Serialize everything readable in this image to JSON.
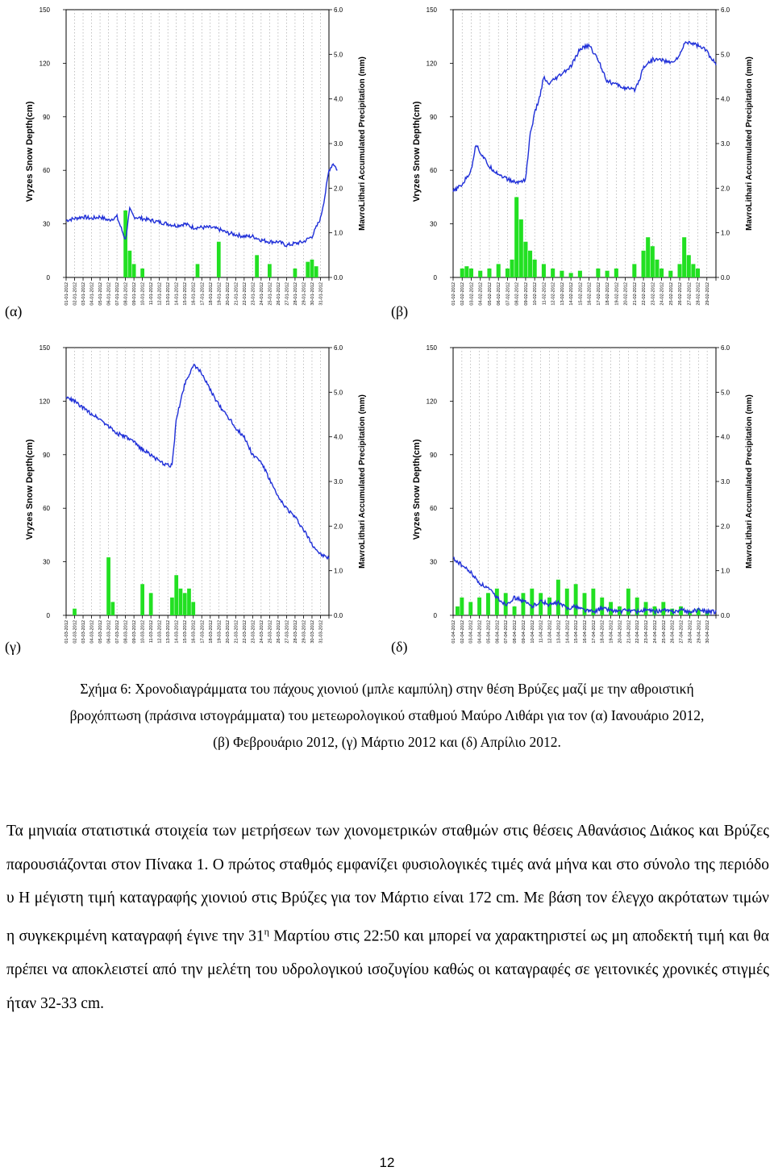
{
  "axis_labels": {
    "left": "Vryzes Snow Depth(cm)",
    "right": "MavroLithari Accumulated Precipitation (mm)",
    "left_ticks": [
      "0",
      "30",
      "60",
      "90",
      "120",
      "150"
    ],
    "right_ticks": [
      "0.0",
      "1.0",
      "2.0",
      "3.0",
      "4.0",
      "5.0",
      "6.0"
    ]
  },
  "colors": {
    "snow": "#1f2fd8",
    "precip": "#22e022",
    "grid": "#9a9a9a"
  },
  "chart_data": [
    {
      "type": "line",
      "panel_label": "(α)",
      "month": "01",
      "days": 31,
      "ylim": [
        0,
        150
      ],
      "y2lim": [
        0.0,
        6.0
      ],
      "snow_depth_keypoints": [
        [
          0,
          32
        ],
        [
          1,
          33
        ],
        [
          2,
          34
        ],
        [
          3,
          33
        ],
        [
          4,
          34
        ],
        [
          5,
          32
        ],
        [
          6,
          34
        ],
        [
          7,
          21
        ],
        [
          7.5,
          38
        ],
        [
          8,
          34
        ],
        [
          9,
          33
        ],
        [
          10,
          32
        ],
        [
          11,
          31
        ],
        [
          12,
          30
        ],
        [
          13,
          29
        ],
        [
          14,
          30
        ],
        [
          15,
          28
        ],
        [
          16,
          28
        ],
        [
          17,
          28
        ],
        [
          18,
          27
        ],
        [
          19,
          25
        ],
        [
          20,
          24
        ],
        [
          21,
          23
        ],
        [
          22,
          23
        ],
        [
          23,
          21
        ],
        [
          24,
          20
        ],
        [
          25,
          20
        ],
        [
          26,
          18
        ],
        [
          27,
          19
        ],
        [
          28,
          20
        ],
        [
          29,
          23
        ],
        [
          30,
          33
        ],
        [
          30.5,
          45
        ],
        [
          31,
          60
        ],
        [
          31.5,
          64
        ],
        [
          32,
          60
        ]
      ],
      "precip_bars": [
        [
          7,
          1.5
        ],
        [
          7.5,
          0.6
        ],
        [
          8,
          0.3
        ],
        [
          9,
          0.2
        ],
        [
          15.5,
          0.3
        ],
        [
          18,
          0.8
        ],
        [
          22.5,
          0.5
        ],
        [
          24,
          0.3
        ],
        [
          27,
          0.2
        ],
        [
          28.5,
          0.35
        ],
        [
          29,
          0.4
        ],
        [
          29.5,
          0.25
        ]
      ]
    },
    {
      "type": "line",
      "panel_label": "(β)",
      "month": "02",
      "days": 29,
      "ylim": [
        0,
        150
      ],
      "y2lim": [
        0.0,
        6.0
      ],
      "snow_depth_keypoints": [
        [
          0,
          48
        ],
        [
          1,
          52
        ],
        [
          2,
          60
        ],
        [
          2.5,
          75
        ],
        [
          3,
          70
        ],
        [
          4,
          62
        ],
        [
          5,
          58
        ],
        [
          6,
          55
        ],
        [
          7,
          53
        ],
        [
          8,
          55
        ],
        [
          8.5,
          80
        ],
        [
          9,
          92
        ],
        [
          9.5,
          100
        ],
        [
          10,
          112
        ],
        [
          10.5,
          108
        ],
        [
          11,
          110
        ],
        [
          12,
          114
        ],
        [
          13,
          118
        ],
        [
          14,
          128
        ],
        [
          15,
          130
        ],
        [
          16,
          122
        ],
        [
          17,
          110
        ],
        [
          18,
          108
        ],
        [
          19,
          106
        ],
        [
          20,
          105
        ],
        [
          20.5,
          110
        ],
        [
          21,
          118
        ],
        [
          22,
          122
        ],
        [
          23,
          122
        ],
        [
          24,
          120
        ],
        [
          25,
          124
        ],
        [
          25.5,
          131
        ],
        [
          26,
          132
        ],
        [
          27,
          130
        ],
        [
          28,
          127
        ],
        [
          28.5,
          122
        ],
        [
          29,
          120
        ]
      ],
      "precip_bars": [
        [
          1,
          0.2
        ],
        [
          1.5,
          0.25
        ],
        [
          2,
          0.2
        ],
        [
          3,
          0.15
        ],
        [
          4,
          0.2
        ],
        [
          5,
          0.3
        ],
        [
          6,
          0.2
        ],
        [
          6.5,
          0.4
        ],
        [
          7,
          1.8
        ],
        [
          7.5,
          1.3
        ],
        [
          8,
          0.8
        ],
        [
          8.5,
          0.6
        ],
        [
          9,
          0.4
        ],
        [
          10,
          0.3
        ],
        [
          11,
          0.2
        ],
        [
          12,
          0.15
        ],
        [
          13,
          0.1
        ],
        [
          14,
          0.15
        ],
        [
          16,
          0.2
        ],
        [
          17,
          0.15
        ],
        [
          18,
          0.2
        ],
        [
          20,
          0.3
        ],
        [
          21,
          0.6
        ],
        [
          21.5,
          0.9
        ],
        [
          22,
          0.7
        ],
        [
          22.5,
          0.4
        ],
        [
          23,
          0.2
        ],
        [
          24,
          0.15
        ],
        [
          25,
          0.3
        ],
        [
          25.5,
          0.9
        ],
        [
          26,
          0.5
        ],
        [
          26.5,
          0.3
        ],
        [
          27,
          0.2
        ]
      ]
    },
    {
      "type": "line",
      "panel_label": "(γ)",
      "month": "03",
      "days": 31,
      "ylim": [
        0,
        150
      ],
      "y2lim": [
        0.0,
        6.0
      ],
      "snow_depth_keypoints": [
        [
          0,
          122
        ],
        [
          1,
          120
        ],
        [
          2,
          116
        ],
        [
          3,
          113
        ],
        [
          4,
          110
        ],
        [
          5,
          106
        ],
        [
          6,
          102
        ],
        [
          7,
          100
        ],
        [
          8,
          97
        ],
        [
          9,
          93
        ],
        [
          10,
          90
        ],
        [
          11,
          86
        ],
        [
          12,
          84
        ],
        [
          12.5,
          84
        ],
        [
          13,
          110
        ],
        [
          14,
          130
        ],
        [
          15,
          140
        ],
        [
          16,
          136
        ],
        [
          17,
          126
        ],
        [
          18,
          118
        ],
        [
          19,
          112
        ],
        [
          20,
          105
        ],
        [
          21,
          100
        ],
        [
          22,
          90
        ],
        [
          23,
          86
        ],
        [
          24,
          76
        ],
        [
          25,
          66
        ],
        [
          26,
          60
        ],
        [
          27,
          55
        ],
        [
          28,
          48
        ],
        [
          29,
          40
        ],
        [
          30,
          34
        ],
        [
          31,
          32
        ]
      ],
      "precip_bars": [
        [
          1,
          0.15
        ],
        [
          5,
          1.3
        ],
        [
          5.5,
          0.3
        ],
        [
          9,
          0.7
        ],
        [
          10,
          0.5
        ],
        [
          12.5,
          0.4
        ],
        [
          13,
          0.9
        ],
        [
          13.5,
          0.6
        ],
        [
          14,
          0.5
        ],
        [
          14.5,
          0.6
        ],
        [
          15,
          0.3
        ]
      ]
    },
    {
      "type": "line",
      "panel_label": "(δ)",
      "month": "04",
      "days": 30,
      "ylim": [
        0,
        150
      ],
      "y2lim": [
        0.0,
        6.0
      ],
      "snow_depth_keypoints": [
        [
          0,
          32
        ],
        [
          1,
          28
        ],
        [
          2,
          24
        ],
        [
          3,
          18
        ],
        [
          4,
          15
        ],
        [
          5,
          10
        ],
        [
          6,
          6
        ],
        [
          7,
          10
        ],
        [
          8,
          8
        ],
        [
          9,
          5
        ],
        [
          10,
          8
        ],
        [
          11,
          6
        ],
        [
          12,
          7
        ],
        [
          13,
          4
        ],
        [
          14,
          5
        ],
        [
          15,
          3
        ],
        [
          16,
          2
        ],
        [
          17,
          4
        ],
        [
          18,
          3
        ],
        [
          19,
          2
        ],
        [
          20,
          3
        ],
        [
          21,
          2
        ],
        [
          22,
          3
        ],
        [
          23,
          2
        ],
        [
          24,
          3
        ],
        [
          25,
          2
        ],
        [
          26,
          3
        ],
        [
          27,
          2
        ],
        [
          28,
          3
        ],
        [
          29,
          2
        ],
        [
          30,
          2
        ]
      ],
      "precip_bars": [
        [
          0.5,
          0.2
        ],
        [
          1,
          0.4
        ],
        [
          2,
          0.3
        ],
        [
          3,
          0.4
        ],
        [
          4,
          0.5
        ],
        [
          5,
          0.6
        ],
        [
          6,
          0.5
        ],
        [
          7,
          0.2
        ],
        [
          8,
          0.5
        ],
        [
          9,
          0.6
        ],
        [
          10,
          0.5
        ],
        [
          11,
          0.4
        ],
        [
          12,
          0.8
        ],
        [
          13,
          0.6
        ],
        [
          14,
          0.7
        ],
        [
          15,
          0.5
        ],
        [
          16,
          0.6
        ],
        [
          17,
          0.4
        ],
        [
          18,
          0.3
        ],
        [
          19,
          0.2
        ],
        [
          20,
          0.6
        ],
        [
          21,
          0.4
        ],
        [
          22,
          0.3
        ],
        [
          23,
          0.2
        ],
        [
          24,
          0.3
        ],
        [
          25,
          0.15
        ],
        [
          26,
          0.2
        ],
        [
          27,
          0.1
        ],
        [
          28,
          0.15
        ],
        [
          29,
          0.1
        ]
      ]
    }
  ],
  "caption": {
    "line1": "Σχήμα 6: Χρονοδιαγράμματα του πάχους χιονιού (μπλε καμπύλη) στην θέση Βρύζες μαζί με την αθροιστική",
    "line2": "βροχόπτωση (πράσινα ιστογράμματα) του μετεωρολογικού σταθμού Μαύρο Λιθάρι για τον (α) Ιανουάριο 2012,",
    "line3": "(β) Φεβρουάριο 2012, (γ) Μάρτιο 2012 και (δ) Απρίλιο 2012."
  },
  "paragraph": {
    "part1": "Τα μηνιαία στατιστικά στοιχεία των μετρήσεων των χιονομετρικών σταθμών στις θέσεις Αθανάσιος Διάκος και Βρύζες παρουσιάζονται στον Πίνακα 1. Ο πρώτος σταθμός εμφανίζει φυσιολογικές τιμές ανά μήνα και στο σύνολο της περιόδο υ Η μέγιστη τιμή καταγραφής χιονιού στις Βρύζες για τον Μάρτιο είναι 172 cm. Με βάση τον έλεγχο ακρότατων τιμών η συγκεκριμένη καταγραφή έγινε την 31",
    "superscript": "η",
    "part2": " Μαρτίου στις 22:50 και μπορεί να χαρακτηριστεί ως μη αποδεκτή τιμή και θα πρέπει να αποκλειστεί από την μελέτη του υδρολογικού ισοζυγίου καθώς οι καταγραφές σε γειτονικές χρονικές στιγμές ήταν 32-33 cm."
  },
  "page_number": "12"
}
